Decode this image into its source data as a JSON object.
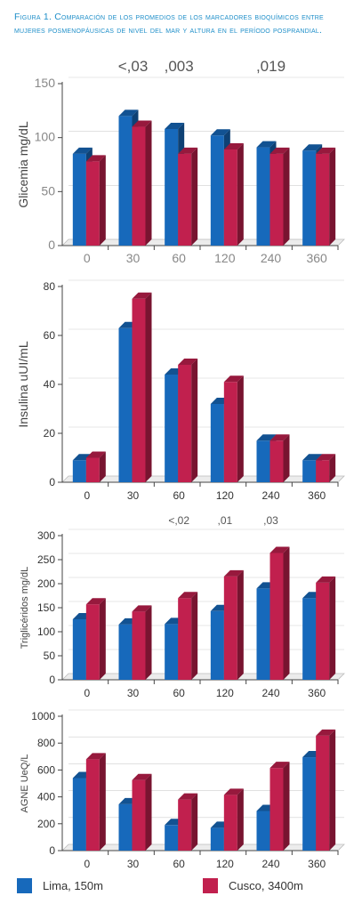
{
  "caption": {
    "prefix": "Figura 1.",
    "text": "Comparación de los promedios de los marcadores bioquímicos entre mujeres posmenopáusicas de nivel del mar y altura en el período posprandial."
  },
  "colors": {
    "lima": "#1769bb",
    "cusco": "#c1204e",
    "axis": "#333333",
    "grid": "#cfcfcf"
  },
  "legend": [
    {
      "label": "Lima, 150m",
      "color": "#1769bb"
    },
    {
      "label": "Cusco, 3400m",
      "color": "#c1204e"
    }
  ],
  "chart_data": [
    {
      "type": "bar",
      "ylabel": "Glicemia mg/dL",
      "categories": [
        "0",
        "30",
        "60",
        "120",
        "240",
        "360"
      ],
      "ylim": [
        0,
        150
      ],
      "yticks": [
        0,
        50,
        100,
        150
      ],
      "series": [
        {
          "name": "Lima, 150m",
          "values": [
            85,
            120,
            108,
            102,
            91,
            88
          ]
        },
        {
          "name": "Cusco, 3400m",
          "values": [
            78,
            110,
            85,
            89,
            85,
            85
          ]
        }
      ],
      "annotations": [
        {
          "category": "30",
          "text": "<,03"
        },
        {
          "category": "60",
          "text": ",003"
        },
        {
          "category": "240",
          "text": ",019"
        }
      ]
    },
    {
      "type": "bar",
      "ylabel": "Insulina uUI/mL",
      "categories": [
        "0",
        "30",
        "60",
        "120",
        "240",
        "360"
      ],
      "ylim": [
        0,
        80
      ],
      "yticks": [
        0,
        20,
        40,
        60,
        80
      ],
      "series": [
        {
          "name": "Lima, 150m",
          "values": [
            9,
            63,
            44,
            32,
            17,
            9
          ]
        },
        {
          "name": "Cusco, 3400m",
          "values": [
            10,
            75,
            48,
            41,
            17,
            9
          ]
        }
      ],
      "annotations": []
    },
    {
      "type": "bar",
      "ylabel": "Triglicéridos mg/dL",
      "categories": [
        "0",
        "30",
        "60",
        "120",
        "240",
        "360"
      ],
      "ylim": [
        0,
        300
      ],
      "yticks": [
        0,
        50,
        100,
        150,
        200,
        250,
        300
      ],
      "series": [
        {
          "name": "Lima, 150m",
          "values": [
            126,
            115,
            116,
            143,
            190,
            170
          ]
        },
        {
          "name": "Cusco, 3400m",
          "values": [
            157,
            142,
            170,
            215,
            264,
            202
          ]
        }
      ],
      "annotations": [
        {
          "category": "60",
          "text": "<,02"
        },
        {
          "category": "120",
          "text": ",01"
        },
        {
          "category": "240",
          "text": ",03"
        }
      ]
    },
    {
      "type": "bar",
      "ylabel": "AGNE UeQ/L",
      "categories": [
        "0",
        "30",
        "60",
        "120",
        "240",
        "360"
      ],
      "ylim": [
        0,
        1000
      ],
      "yticks": [
        0,
        200,
        400,
        600,
        800,
        1000
      ],
      "series": [
        {
          "name": "Lima, 150m",
          "values": [
            540,
            345,
            190,
            170,
            295,
            695
          ]
        },
        {
          "name": "Cusco, 3400m",
          "values": [
            680,
            525,
            380,
            415,
            615,
            855
          ]
        }
      ],
      "annotations": []
    }
  ]
}
